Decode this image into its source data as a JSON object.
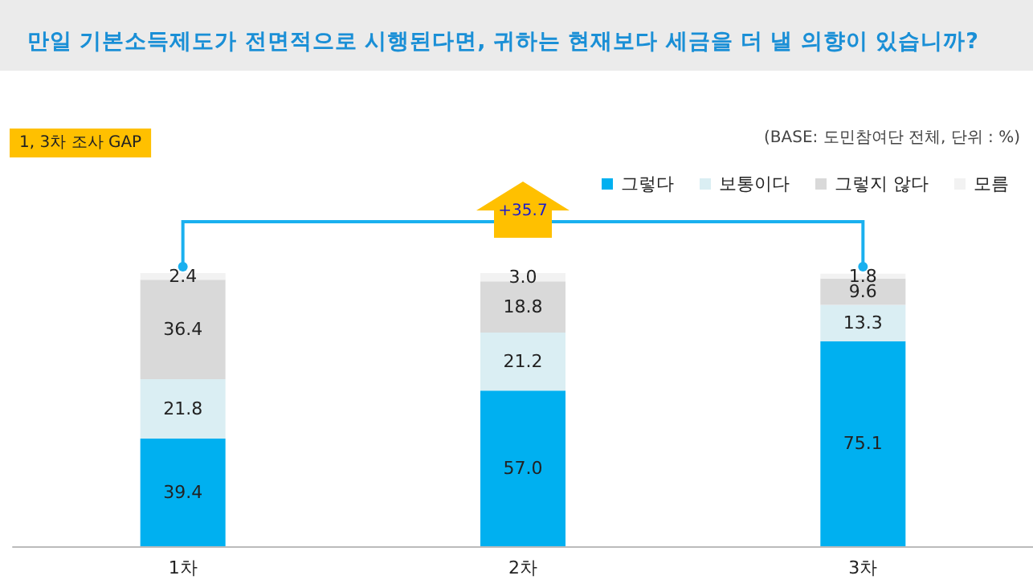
{
  "chart_data": {
    "type": "bar",
    "stacked": true,
    "title": "만일 기본소득제도가 전면적으로 시행된다면, 귀하는 현재보다 세금을 더 낼 의향이 있습니까?",
    "categories": [
      "1차",
      "2차",
      "3차"
    ],
    "series": [
      {
        "name": "그렇다",
        "color": "#00b0f0",
        "values": [
          39.4,
          57.0,
          75.1
        ],
        "value_labels": [
          "39.4",
          "57.0",
          "75.1"
        ]
      },
      {
        "name": "보통이다",
        "color": "#daeef3",
        "values": [
          21.8,
          21.2,
          13.3
        ],
        "value_labels": [
          "21.8",
          "21.2",
          "13.3"
        ]
      },
      {
        "name": "그렇지 않다",
        "color": "#d9d9d9",
        "values": [
          36.4,
          18.8,
          9.6
        ],
        "value_labels": [
          "36.4",
          "18.8",
          "9.6"
        ]
      },
      {
        "name": "모름",
        "color": "#f2f2f2",
        "values": [
          2.4,
          3.0,
          1.8
        ],
        "value_labels": [
          "2.4",
          "3.0",
          "1.8"
        ]
      }
    ],
    "legend": "top right",
    "annotations": [
      "1, 3차 조사 GAP",
      "(BASE: 도민참여단 전체, 단위 : %)",
      "+35.7"
    ]
  }
}
